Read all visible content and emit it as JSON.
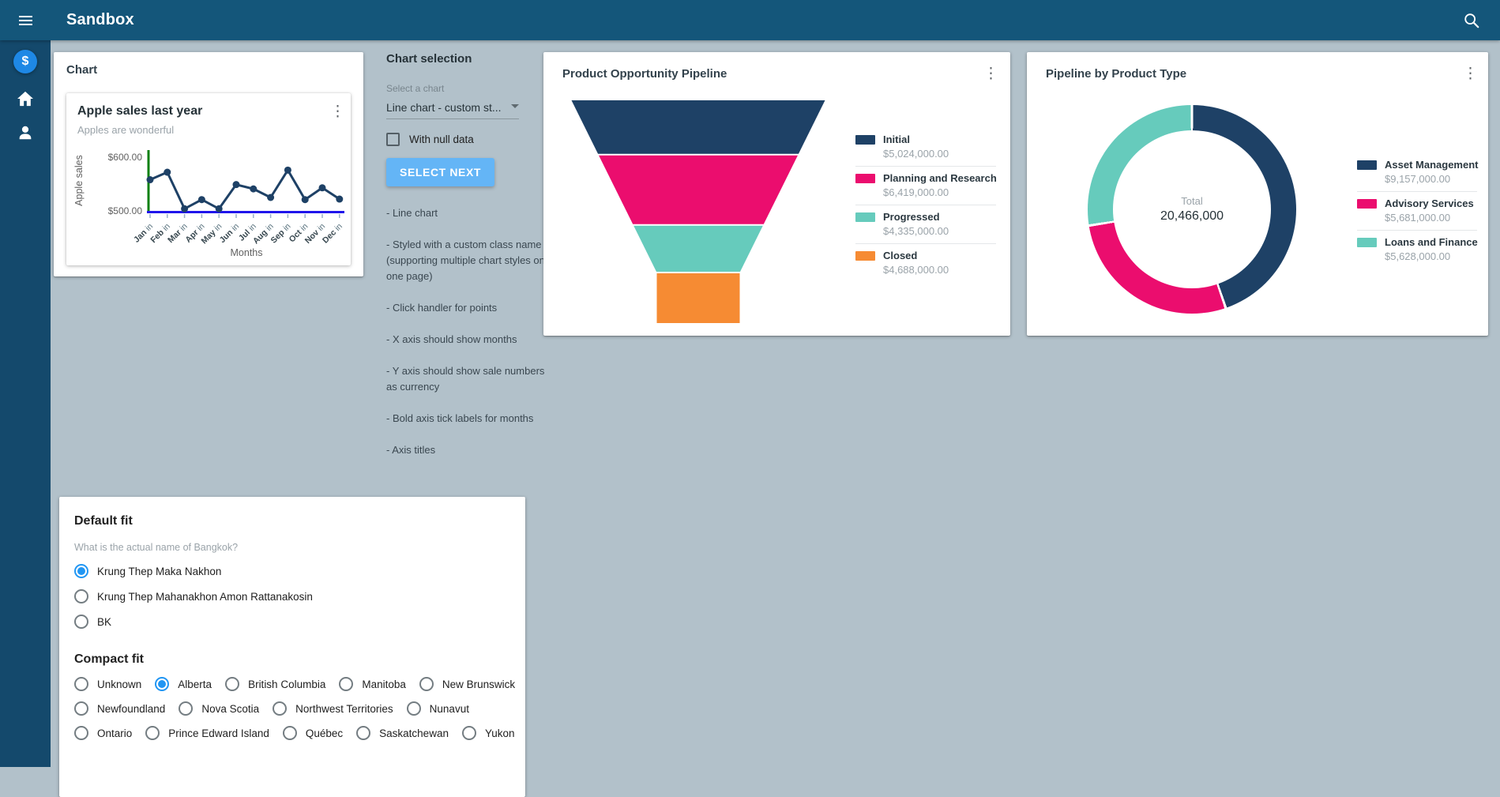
{
  "app": {
    "title": "Sandbox"
  },
  "colors": {
    "topbar": "#14567a",
    "background": "#b2c1ca",
    "accent": "#2196f3",
    "button": "#64b5f6",
    "navy": "#1e4166",
    "pink": "#eb0d6e",
    "teal": "#66cbbc",
    "orange": "#f68b33",
    "axis_green": "#0b8012",
    "axis_blue": "#2015eb"
  },
  "sidebar": {
    "icons": [
      {
        "name": "dollar-avatar",
        "glyph": "$"
      },
      {
        "name": "home-icon"
      },
      {
        "name": "person-icon"
      }
    ]
  },
  "chart_card": {
    "heading": "Chart",
    "inner_title": "Apple sales last year",
    "inner_subtitle": "Apples are wonderful"
  },
  "chart_selection": {
    "heading": "Chart selection",
    "select_label": "Select a chart",
    "select_value": "Line chart - custom st...",
    "checkbox_label": "With null data",
    "checkbox_checked": false,
    "button_label": "SELECT NEXT",
    "notes": [
      "- Line chart",
      "- Styled with a custom class name\n(supporting multiple chart styles on one page)",
      "- Click handler for points",
      "- X axis should show months",
      "- Y axis should show sale numbers as currency",
      "- Bold axis tick labels for months",
      "- Axis titles"
    ]
  },
  "funnel_card": {
    "title": "Product Opportunity Pipeline"
  },
  "donut_card": {
    "title": "Pipeline by Product Type",
    "total_label": "Total",
    "total_value": "20,466,000"
  },
  "fit_card": {
    "default_heading": "Default fit",
    "question": "What is the actual name of Bangkok?",
    "default_options": [
      {
        "label": "Krung Thep Maka Nakhon",
        "selected": true
      },
      {
        "label": "Krung Thep Mahanakhon Amon Rattanakosin",
        "selected": false
      },
      {
        "label": "BK",
        "selected": false
      }
    ],
    "compact_heading": "Compact fit",
    "compact_rows": [
      [
        "Unknown",
        "Alberta",
        "British Columbia",
        "Manitoba",
        "New Brunswick"
      ],
      [
        "Newfoundland",
        "Nova Scotia",
        "Northwest Territories",
        "Nunavut"
      ],
      [
        "Ontario",
        "Prince Edward Island",
        "Québec",
        "Saskatchewan",
        "Yukon"
      ]
    ],
    "compact_selected": "Alberta"
  },
  "chart_data": [
    {
      "type": "line",
      "title": "Apple sales last year",
      "subtitle": "Apples are wonderful",
      "categories": [
        "Jan",
        "Feb",
        "Mar",
        "Apr",
        "May",
        "Jun",
        "Jul",
        "Aug",
        "Sep",
        "Oct",
        "Nov",
        "Dec"
      ],
      "x_tick_suffix": "in",
      "values": [
        558,
        572,
        504,
        521,
        504,
        549,
        541,
        525,
        576,
        521,
        543,
        522
      ],
      "xlabel": "Months",
      "ylabel": "Apple sales",
      "y_ticks": [
        {
          "value": 500,
          "label": "$500.00"
        },
        {
          "value": 600,
          "label": "$600.00"
        }
      ],
      "ylim": [
        500,
        610
      ],
      "line_color": "#1e4166"
    },
    {
      "type": "funnel",
      "title": "Product Opportunity Pipeline",
      "categories": [
        "Initial",
        "Planning and Research",
        "Progressed",
        "Closed"
      ],
      "values": [
        5024000,
        6419000,
        4335000,
        4688000
      ],
      "value_labels": [
        "$5,024,000.00",
        "$6,419,000.00",
        "$4,335,000.00",
        "$4,688,000.00"
      ],
      "colors": [
        "#1e4166",
        "#eb0d6e",
        "#66cbbc",
        "#f68b33"
      ],
      "legend_position": "right"
    },
    {
      "type": "donut",
      "title": "Pipeline by Product Type",
      "categories": [
        "Asset Management",
        "Advisory Services",
        "Loans and Finance"
      ],
      "values": [
        9157000,
        5681000,
        5628000
      ],
      "value_labels": [
        "$9,157,000.00",
        "$5,681,000.00",
        "$5,628,000.00"
      ],
      "colors": [
        "#1e4166",
        "#eb0d6e",
        "#66cbbc"
      ],
      "total_label": "Total",
      "total_value": "20,466,000",
      "legend_position": "right"
    }
  ]
}
